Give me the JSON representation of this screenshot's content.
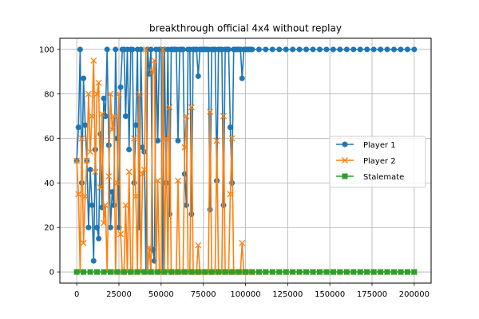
{
  "chart_data": {
    "type": "line",
    "title": "breakthrough official 4x4 without replay",
    "xlabel": "",
    "ylabel": "",
    "xlim": [
      -10000,
      210000
    ],
    "ylim": [
      -5,
      105
    ],
    "xticks": [
      0,
      25000,
      50000,
      75000,
      100000,
      125000,
      150000,
      175000,
      200000
    ],
    "yticks": [
      0,
      20,
      40,
      60,
      80,
      100
    ],
    "grid": true,
    "legend_position": "center-right",
    "series": [
      {
        "name": "Player 1",
        "color": "#1f77b4",
        "marker": "circle",
        "x": [
          0,
          1000,
          2000,
          3000,
          4000,
          5000,
          6000,
          7000,
          8000,
          9000,
          10000,
          11000,
          12000,
          13000,
          14000,
          15000,
          16000,
          17000,
          18000,
          19000,
          20000,
          21000,
          22000,
          23000,
          24000,
          25000,
          26000,
          27000,
          28000,
          29000,
          30000,
          31000,
          32000,
          33000,
          34000,
          35000,
          36000,
          37000,
          38000,
          39000,
          40000,
          41000,
          42000,
          43000,
          44000,
          45000,
          46000,
          47000,
          48000,
          49000,
          50000,
          51000,
          52000,
          53000,
          54000,
          55000,
          56000,
          57000,
          58000,
          59000,
          60000,
          61000,
          62000,
          63000,
          64000,
          65000,
          66000,
          67000,
          68000,
          69000,
          70000,
          71000,
          72000,
          73000,
          74000,
          75000,
          76000,
          77000,
          78000,
          79000,
          80000,
          81000,
          82000,
          83000,
          84000,
          85000,
          86000,
          87000,
          88000,
          89000,
          90000,
          91000,
          92000,
          93000,
          94000,
          95000,
          96000,
          97000,
          98000,
          99000,
          100000,
          101000,
          102000,
          103000,
          104000,
          108000,
          112000,
          116000,
          120000,
          124000,
          128000,
          132000,
          136000,
          140000,
          144000,
          148000,
          152000,
          156000,
          160000,
          164000,
          168000,
          172000,
          176000,
          180000,
          184000,
          188000,
          192000,
          196000,
          200000
        ],
        "values": [
          50,
          65,
          100,
          40,
          87,
          66,
          50,
          20,
          46,
          30,
          5,
          55,
          20,
          15,
          62,
          29,
          78,
          70,
          100,
          57,
          20,
          36,
          30,
          100,
          60,
          20,
          83,
          100,
          100,
          70,
          100,
          55,
          100,
          100,
          40,
          66,
          100,
          20,
          100,
          56,
          54,
          0,
          100,
          89,
          100,
          10,
          5,
          100,
          59,
          100,
          100,
          0,
          100,
          40,
          100,
          26,
          100,
          100,
          100,
          100,
          59,
          100,
          100,
          100,
          44,
          30,
          100,
          100,
          26,
          100,
          100,
          100,
          88,
          100,
          100,
          100,
          100,
          100,
          100,
          28,
          100,
          100,
          100,
          41,
          100,
          100,
          100,
          30,
          100,
          100,
          100,
          65,
          40,
          100,
          100,
          100,
          100,
          100,
          87,
          100,
          100,
          100,
          100,
          100,
          100,
          100,
          100,
          100,
          100,
          100,
          100,
          100,
          100,
          100,
          100,
          100,
          100,
          100,
          100,
          100,
          100,
          100,
          100,
          100,
          100,
          100,
          100,
          100,
          100
        ]
      },
      {
        "name": "Player 2",
        "color": "#ff7f0e",
        "marker": "x",
        "x": [
          0,
          1000,
          2000,
          3000,
          4000,
          5000,
          6000,
          7000,
          8000,
          9000,
          10000,
          11000,
          12000,
          13000,
          14000,
          15000,
          16000,
          17000,
          18000,
          19000,
          20000,
          21000,
          22000,
          23000,
          24000,
          25000,
          26000,
          27000,
          28000,
          29000,
          30000,
          31000,
          32000,
          33000,
          34000,
          35000,
          36000,
          37000,
          38000,
          39000,
          40000,
          41000,
          42000,
          43000,
          44000,
          45000,
          46000,
          47000,
          48000,
          49000,
          50000,
          51000,
          52000,
          53000,
          54000,
          55000,
          56000,
          57000,
          58000,
          59000,
          60000,
          61000,
          62000,
          63000,
          64000,
          65000,
          66000,
          67000,
          68000,
          69000,
          70000,
          71000,
          72000,
          73000,
          74000,
          75000,
          76000,
          77000,
          78000,
          79000,
          80000,
          81000,
          82000,
          83000,
          84000,
          85000,
          86000,
          87000,
          88000,
          89000,
          90000,
          91000,
          92000,
          93000,
          94000,
          95000,
          96000,
          97000,
          98000,
          99000,
          100000,
          101000,
          102000,
          103000,
          104000,
          108000,
          112000,
          116000,
          120000,
          124000,
          128000,
          132000,
          136000,
          140000,
          144000,
          148000,
          152000,
          156000,
          160000,
          164000,
          168000,
          172000,
          176000,
          180000,
          184000,
          188000,
          192000,
          196000,
          200000
        ],
        "values": [
          50,
          35,
          0,
          60,
          13,
          34,
          50,
          80,
          54,
          70,
          95,
          45,
          80,
          85,
          38,
          71,
          22,
          30,
          0,
          43,
          80,
          64,
          70,
          0,
          40,
          80,
          17,
          0,
          0,
          30,
          0,
          45,
          0,
          0,
          60,
          34,
          0,
          80,
          0,
          44,
          46,
          100,
          0,
          11,
          0,
          90,
          95,
          0,
          41,
          0,
          0,
          100,
          0,
          60,
          0,
          74,
          0,
          0,
          0,
          0,
          41,
          0,
          0,
          0,
          56,
          70,
          0,
          0,
          74,
          0,
          0,
          0,
          12,
          0,
          0,
          0,
          0,
          0,
          0,
          72,
          0,
          0,
          0,
          59,
          0,
          0,
          0,
          70,
          0,
          0,
          0,
          35,
          60,
          0,
          0,
          0,
          0,
          0,
          13,
          0,
          0,
          0,
          0,
          0,
          0,
          0,
          0,
          0,
          0,
          0,
          0,
          0,
          0,
          0,
          0,
          0,
          0,
          0,
          0,
          0,
          0,
          0,
          0,
          0,
          0,
          0,
          0,
          0,
          0
        ]
      },
      {
        "name": "Stalemate",
        "color": "#2ca02c",
        "marker": "square",
        "x": [
          0,
          4000,
          8000,
          12000,
          16000,
          20000,
          24000,
          28000,
          32000,
          36000,
          40000,
          44000,
          48000,
          52000,
          56000,
          60000,
          64000,
          68000,
          72000,
          76000,
          80000,
          84000,
          88000,
          92000,
          96000,
          100000,
          104000,
          108000,
          112000,
          116000,
          120000,
          124000,
          128000,
          132000,
          136000,
          140000,
          144000,
          148000,
          152000,
          156000,
          160000,
          164000,
          168000,
          172000,
          176000,
          180000,
          184000,
          188000,
          192000,
          196000,
          200000
        ],
        "values": [
          0,
          0,
          0,
          0,
          0,
          0,
          0,
          0,
          0,
          0,
          0,
          0,
          0,
          0,
          0,
          0,
          0,
          0,
          0,
          0,
          0,
          0,
          0,
          0,
          0,
          0,
          0,
          0,
          0,
          0,
          0,
          0,
          0,
          0,
          0,
          0,
          0,
          0,
          0,
          0,
          0,
          0,
          0,
          0,
          0,
          0,
          0,
          0,
          0,
          0,
          0
        ]
      }
    ]
  }
}
